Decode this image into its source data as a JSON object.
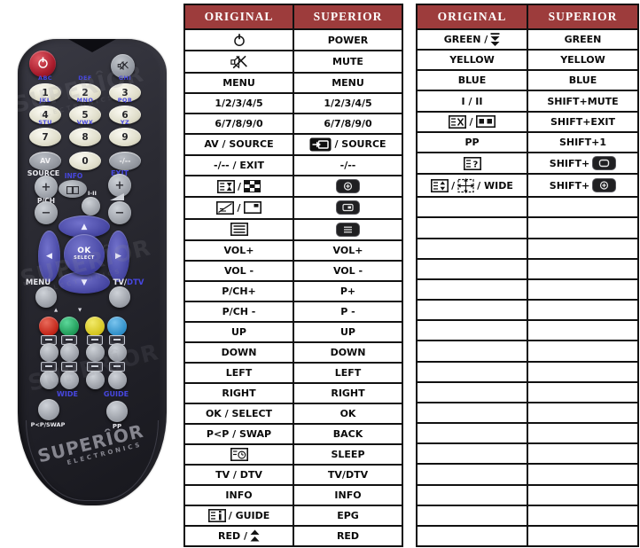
{
  "colors": {
    "header_bg": "#9d3c3c",
    "header_text": "#ffffff",
    "table_border": "#111111",
    "label_blue": "#4747e0",
    "power_red": "#b52735",
    "btn_red": "#cf2a2a",
    "btn_green": "#27aa68",
    "btn_yellow": "#ddce2a",
    "btn_blue": "#3a9ad8"
  },
  "icons": {
    "up": "▲",
    "down": "▼",
    "left": "◀",
    "right": "▶",
    "plus": "+",
    "minus": "−"
  },
  "remote": {
    "digit_rows": [
      {
        "labels": [
          "ABC",
          "DEF",
          "GHI"
        ],
        "keys": [
          "1",
          "2",
          "3"
        ]
      },
      {
        "labels": [
          "JKL",
          "MNO",
          "PQR"
        ],
        "keys": [
          "4",
          "5",
          "6"
        ]
      },
      {
        "labels": [
          "STU",
          "VWX",
          "YZ"
        ],
        "keys": [
          "7",
          "8",
          "9"
        ]
      },
      {
        "labels": [
          "",
          "",
          ""
        ],
        "keys": [
          "AV",
          "0",
          "-/--"
        ]
      }
    ],
    "labels": {
      "source": "SOURCE",
      "info": "INFO",
      "exit": "EXIT",
      "pch": "P/CH",
      "i_ii": "I-II",
      "menu": "MENU",
      "tv": "TV/",
      "dtv": "DTV",
      "ok": "OK",
      "select": "SELECT",
      "wide": "WIDE",
      "guide": "GUIDE",
      "swap": "P<P/SWAP",
      "pp": "PP"
    },
    "watermark": {
      "word": "SUPERÎOR",
      "sub": "ELECTRONICS"
    }
  },
  "tables": [
    {
      "name": "left",
      "headers": [
        "ORIGINAL",
        "SUPERIOR"
      ],
      "rows": [
        [
          [
            {
              "i": "power"
            }
          ],
          [
            {
              "t": "POWER"
            }
          ]
        ],
        [
          [
            {
              "i": "mute"
            }
          ],
          [
            {
              "t": "MUTE"
            }
          ]
        ],
        [
          [
            {
              "t": "MENU"
            }
          ],
          [
            {
              "t": "MENU"
            }
          ]
        ],
        [
          [
            {
              "t": "1/2/3/4/5"
            }
          ],
          [
            {
              "t": "1/2/3/4/5"
            }
          ]
        ],
        [
          [
            {
              "t": "6/7/8/9/0"
            }
          ],
          [
            {
              "t": "6/7/8/9/0"
            }
          ]
        ],
        [
          [
            {
              "t": "AV / SOURCE"
            }
          ],
          [
            {
              "i": "source-btn"
            },
            {
              "t": "/ SOURCE"
            }
          ]
        ],
        [
          [
            {
              "t": "-/-- / EXIT"
            }
          ],
          [
            {
              "t": "-/--"
            }
          ]
        ],
        [
          [
            {
              "i": "hold"
            },
            {
              "t": "/"
            },
            {
              "i": "mosaic"
            }
          ],
          [
            {
              "i": "btn-zoom"
            }
          ]
        ],
        [
          [
            {
              "i": "mix"
            },
            {
              "t": "/"
            },
            {
              "i": "pip"
            }
          ],
          [
            {
              "i": "btn-pip"
            }
          ]
        ],
        [
          [
            {
              "i": "index"
            }
          ],
          [
            {
              "i": "btn-index"
            }
          ]
        ],
        [
          [
            {
              "t": "VOL+"
            }
          ],
          [
            {
              "t": "VOL+"
            }
          ]
        ],
        [
          [
            {
              "t": "VOL -"
            }
          ],
          [
            {
              "t": "VOL -"
            }
          ]
        ],
        [
          [
            {
              "t": "P/CH+"
            }
          ],
          [
            {
              "t": "P+"
            }
          ]
        ],
        [
          [
            {
              "t": "P/CH -"
            }
          ],
          [
            {
              "t": "P -"
            }
          ]
        ],
        [
          [
            {
              "t": "UP"
            }
          ],
          [
            {
              "t": "UP"
            }
          ]
        ],
        [
          [
            {
              "t": "DOWN"
            }
          ],
          [
            {
              "t": "DOWN"
            }
          ]
        ],
        [
          [
            {
              "t": "LEFT"
            }
          ],
          [
            {
              "t": "LEFT"
            }
          ]
        ],
        [
          [
            {
              "t": "RIGHT"
            }
          ],
          [
            {
              "t": "RIGHT"
            }
          ]
        ],
        [
          [
            {
              "t": "OK / SELECT"
            }
          ],
          [
            {
              "t": "OK"
            }
          ]
        ],
        [
          [
            {
              "t": "P<P / SWAP"
            }
          ],
          [
            {
              "t": "BACK"
            }
          ]
        ],
        [
          [
            {
              "i": "sleep"
            }
          ],
          [
            {
              "t": "SLEEP"
            }
          ]
        ],
        [
          [
            {
              "t": "TV / DTV"
            }
          ],
          [
            {
              "t": "TV/DTV"
            }
          ]
        ],
        [
          [
            {
              "t": "INFO"
            }
          ],
          [
            {
              "t": "INFO"
            }
          ]
        ],
        [
          [
            {
              "i": "guide"
            },
            {
              "t": "/ GUIDE"
            }
          ],
          [
            {
              "t": "EPG"
            }
          ]
        ],
        [
          [
            {
              "t": "RED /"
            },
            {
              "i": "up-arrows"
            }
          ],
          [
            {
              "t": "RED"
            }
          ]
        ]
      ]
    },
    {
      "name": "right",
      "headers": [
        "ORIGINAL",
        "SUPERIOR"
      ],
      "rows": [
        [
          [
            {
              "t": "GREEN /"
            },
            {
              "i": "down-arrows"
            }
          ],
          [
            {
              "t": "GREEN"
            }
          ]
        ],
        [
          [
            {
              "t": "YELLOW"
            }
          ],
          [
            {
              "t": "YELLOW"
            }
          ]
        ],
        [
          [
            {
              "t": "BLUE"
            }
          ],
          [
            {
              "t": "BLUE"
            }
          ]
        ],
        [
          [
            {
              "t": "I / II"
            }
          ],
          [
            {
              "t": "SHIFT+MUTE"
            }
          ]
        ],
        [
          [
            {
              "i": "cancel"
            },
            {
              "t": "/"
            },
            {
              "i": "double-window"
            }
          ],
          [
            {
              "t": "SHIFT+EXIT"
            }
          ]
        ],
        [
          [
            {
              "t": "PP"
            }
          ],
          [
            {
              "t": "SHIFT+1"
            }
          ]
        ],
        [
          [
            {
              "i": "reveal"
            }
          ],
          [
            {
              "t": "SHIFT+"
            },
            {
              "i": "btn-format"
            }
          ]
        ],
        [
          [
            {
              "i": "size"
            },
            {
              "t": "/"
            },
            {
              "i": "wide"
            },
            {
              "t": "/ WIDE"
            }
          ],
          [
            {
              "t": "SHIFT+"
            },
            {
              "i": "btn-zoom"
            }
          ]
        ],
        [
          [],
          []
        ],
        [
          [],
          []
        ],
        [
          [],
          []
        ],
        [
          [],
          []
        ],
        [
          [],
          []
        ],
        [
          [],
          []
        ],
        [
          [],
          []
        ],
        [
          [],
          []
        ],
        [
          [],
          []
        ],
        [
          [],
          []
        ],
        [
          [],
          []
        ],
        [
          [],
          []
        ],
        [
          [],
          []
        ],
        [
          [],
          []
        ],
        [
          [],
          []
        ],
        [
          [],
          []
        ],
        [
          [],
          []
        ]
      ]
    }
  ]
}
